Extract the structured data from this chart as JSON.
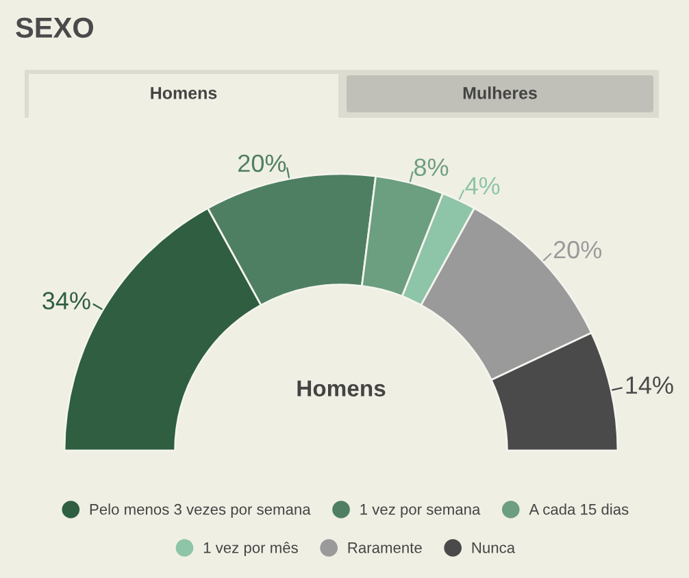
{
  "chart_data": {
    "type": "donut",
    "title": "SEXO",
    "categories": [
      "Pelo menos 3 vezes por semana",
      "1 vez por semana",
      "A cada 15 dias",
      "1 vez por mês",
      "Raramente",
      "Nunca"
    ],
    "values": [
      34,
      20,
      8,
      4,
      20,
      14
    ],
    "value_labels": [
      "34%",
      "20%",
      "8%",
      "4%",
      "20%",
      "14%"
    ],
    "colors": [
      "#2f5e41",
      "#4e7f62",
      "#6c9e80",
      "#8ec4a8",
      "#9a9a9a",
      "#4a4a4a"
    ],
    "annotations": [
      "Homens",
      "Mulheres",
      "Homens"
    ],
    "legend": "bottom"
  }
}
